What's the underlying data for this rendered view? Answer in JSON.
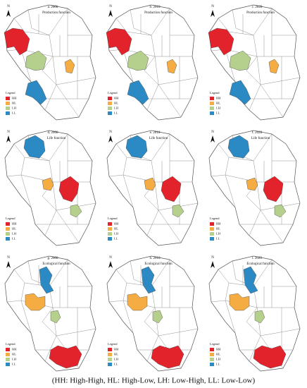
{
  "panels": [
    {
      "label": "a. 2000",
      "function": "Production function"
    },
    {
      "label": "b. 2010",
      "function": "Production function"
    },
    {
      "label": "c. 2020",
      "function": "Production function"
    },
    {
      "label": "d. 2000",
      "function": "Life function"
    },
    {
      "label": "e. 2010",
      "function": "Life function"
    },
    {
      "label": "f. 2020",
      "function": "Life function"
    },
    {
      "label": "g. 2000",
      "function": "Ecological function"
    },
    {
      "label": "h. 2010",
      "function": "Ecological function"
    },
    {
      "label": "i. 2020",
      "function": "Ecological function"
    }
  ],
  "north": "N",
  "legend": {
    "title": "Legend",
    "items": [
      "HH",
      "HL",
      "LH",
      "LL"
    ],
    "colors": [
      "#e3232b",
      "#f5ad43",
      "#b5d08c",
      "#2b89c3"
    ]
  },
  "caption": "(HH: High-High, HL: High-Low, LH: Low-High, LL: Low-Low)"
}
